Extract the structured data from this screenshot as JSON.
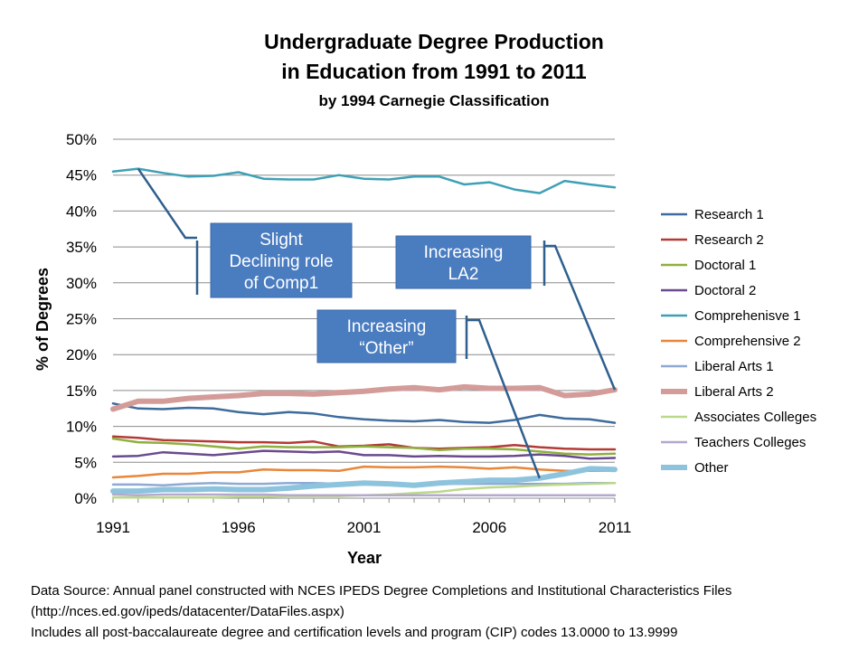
{
  "header": {
    "title_line1": "Undergraduate Degree Production",
    "title_line2": "in Education from 1991 to 2011",
    "subtitle": "by 1994 Carnegie Classification"
  },
  "footer": {
    "source_line1": "Data Source: Annual panel constructed with NCES IPEDS Degree Completions and Institutional Characteristics Files",
    "source_line2": "(http://nces.ed.gov/ipeds/datacenter/DataFiles.aspx)",
    "source_line3": "Includes all post-baccalaureate degree and certification levels and program (CIP) codes 13.0000 to 13.9999"
  },
  "chart_data": {
    "type": "line",
    "title": "Undergraduate Degree Production in Education from 1991 to 2011",
    "subtitle": "by 1994 Carnegie Classification",
    "xlabel": "Year",
    "ylabel": "% of Degrees",
    "x": [
      1991,
      1992,
      1993,
      1994,
      1995,
      1996,
      1997,
      1998,
      1999,
      2000,
      2001,
      2002,
      2003,
      2004,
      2005,
      2006,
      2007,
      2008,
      2009,
      2010,
      2011
    ],
    "xticks": [
      1991,
      1996,
      2001,
      2006,
      2011
    ],
    "xtick_labels": [
      "1991",
      "1996",
      "2001",
      "2006",
      "2011"
    ],
    "ylim": [
      0,
      50
    ],
    "yticks": [
      0,
      5,
      10,
      15,
      20,
      25,
      30,
      35,
      40,
      45,
      50
    ],
    "ytick_labels": [
      "0%",
      "5%",
      "10%",
      "15%",
      "20%",
      "25%",
      "30%",
      "35%",
      "40%",
      "45%",
      "50%"
    ],
    "grid": true,
    "legend_position": "right",
    "series": [
      {
        "name": "Research 1",
        "color": "#3d6b9c",
        "width": 2.5,
        "values": [
          13.2,
          12.5,
          12.4,
          12.6,
          12.5,
          12.0,
          11.7,
          12.0,
          11.8,
          11.3,
          11.0,
          10.8,
          10.7,
          10.9,
          10.6,
          10.5,
          10.9,
          11.6,
          11.1,
          11.0,
          10.5
        ]
      },
      {
        "name": "Research 2",
        "color": "#b33b37",
        "width": 2.5,
        "values": [
          8.6,
          8.4,
          8.1,
          8.0,
          7.9,
          7.8,
          7.8,
          7.7,
          7.9,
          7.2,
          7.3,
          7.5,
          7.0,
          6.9,
          7.0,
          7.1,
          7.4,
          7.1,
          6.9,
          6.8,
          6.8
        ]
      },
      {
        "name": "Doctoral 1",
        "color": "#8faf3f",
        "width": 2.5,
        "values": [
          8.3,
          7.8,
          7.7,
          7.5,
          7.2,
          6.9,
          7.2,
          7.1,
          7.1,
          7.1,
          7.2,
          7.1,
          7.0,
          6.7,
          6.9,
          6.9,
          6.8,
          6.5,
          6.2,
          6.1,
          6.2
        ]
      },
      {
        "name": "Doctoral 2",
        "color": "#6a4a8e",
        "width": 2.5,
        "values": [
          5.8,
          5.9,
          6.4,
          6.2,
          6.0,
          6.3,
          6.6,
          6.5,
          6.4,
          6.5,
          6.0,
          6.0,
          5.8,
          5.9,
          5.8,
          5.8,
          5.9,
          6.1,
          5.9,
          5.5,
          5.6
        ]
      },
      {
        "name": "Comprehenisve 1",
        "color": "#3fa0b5",
        "width": 2.5,
        "values": [
          45.5,
          45.9,
          45.3,
          44.8,
          44.9,
          45.4,
          44.5,
          44.4,
          44.4,
          45.0,
          44.5,
          44.4,
          44.8,
          44.8,
          43.7,
          44.0,
          43.0,
          42.5,
          44.2,
          43.7,
          43.3
        ]
      },
      {
        "name": "Comprehensive 2",
        "color": "#e8863a",
        "width": 2.5,
        "values": [
          2.9,
          3.1,
          3.4,
          3.4,
          3.6,
          3.6,
          4.0,
          3.9,
          3.9,
          3.8,
          4.4,
          4.3,
          4.3,
          4.4,
          4.3,
          4.1,
          4.3,
          4.0,
          3.8,
          3.8,
          3.8
        ]
      },
      {
        "name": "Liberal Arts 1",
        "color": "#8eaad4",
        "width": 2.5,
        "values": [
          1.9,
          1.9,
          1.8,
          2.0,
          2.1,
          2.0,
          2.0,
          2.1,
          2.1,
          2.0,
          2.0,
          2.0,
          1.9,
          2.0,
          2.0,
          2.0,
          2.0,
          2.0,
          2.0,
          2.1,
          2.1
        ]
      },
      {
        "name": "Liberal Arts 2",
        "color": "#d39c99",
        "width": 6,
        "values": [
          12.4,
          13.5,
          13.5,
          13.9,
          14.1,
          14.3,
          14.6,
          14.6,
          14.5,
          14.7,
          14.9,
          15.2,
          15.4,
          15.1,
          15.5,
          15.3,
          15.3,
          15.4,
          14.3,
          14.5,
          15.1
        ]
      },
      {
        "name": "Associates Colleges",
        "color": "#bcd88a",
        "width": 2.5,
        "values": [
          0.1,
          0.1,
          0.1,
          0.1,
          0.1,
          0.2,
          0.2,
          0.3,
          0.3,
          0.3,
          0.4,
          0.5,
          0.7,
          0.9,
          1.3,
          1.5,
          1.6,
          1.8,
          1.9,
          2.0,
          2.1
        ]
      },
      {
        "name": "Teachers Colleges",
        "color": "#b4a8cc",
        "width": 2.5,
        "values": [
          0.5,
          0.4,
          0.5,
          0.5,
          0.5,
          0.5,
          0.5,
          0.4,
          0.4,
          0.4,
          0.4,
          0.4,
          0.4,
          0.4,
          0.4,
          0.4,
          0.4,
          0.4,
          0.4,
          0.4,
          0.4
        ]
      },
      {
        "name": "Other",
        "color": "#8ec3dd",
        "width": 6,
        "values": [
          1.0,
          1.0,
          1.2,
          1.2,
          1.3,
          1.2,
          1.2,
          1.4,
          1.7,
          1.9,
          2.1,
          2.0,
          1.8,
          2.1,
          2.3,
          2.5,
          2.5,
          2.8,
          3.4,
          4.1,
          4.0
        ]
      }
    ],
    "annotations": [
      {
        "text": "Slight Declining role of Comp1",
        "lines": [
          "Slight",
          "Declining role",
          "of Comp1"
        ],
        "points_to": {
          "x": 1992,
          "y": 45.9
        }
      },
      {
        "text": "Increasing LA2",
        "lines": [
          "Increasing",
          "LA2"
        ],
        "points_to": {
          "x": 2011,
          "y": 15.1
        }
      },
      {
        "text": "Increasing “Other”",
        "lines": [
          "Increasing",
          "“Other”"
        ],
        "points_to": {
          "x": 2008,
          "y": 2.8
        }
      }
    ]
  }
}
